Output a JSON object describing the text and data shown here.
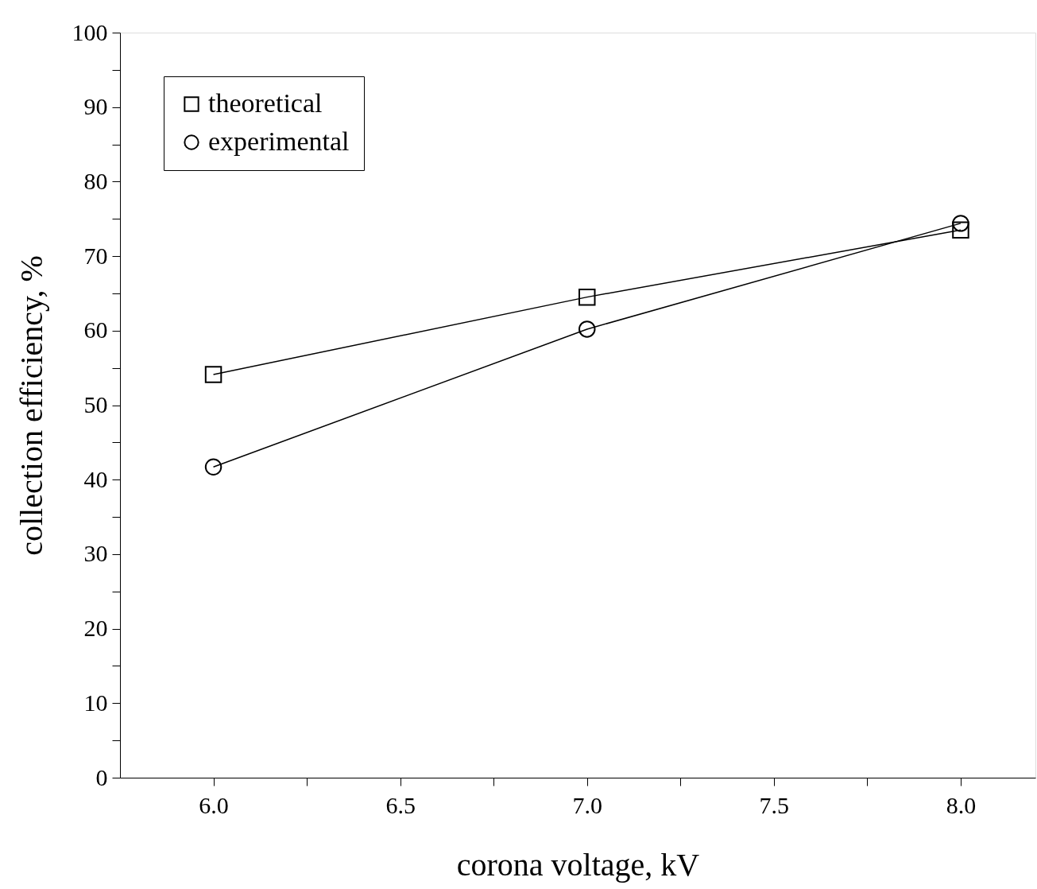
{
  "chart_data": {
    "type": "line",
    "xlabel": "corona voltage, kV",
    "ylabel": "collection efficiency, %",
    "x": [
      6.0,
      7.0,
      8.0
    ],
    "series": [
      {
        "name": "theoretical",
        "color": "#000000",
        "marker": "square",
        "values": [
          54.1,
          64.5,
          73.5
        ]
      },
      {
        "name": "experimental",
        "color": "#000000",
        "marker": "circle",
        "values": [
          41.7,
          60.2,
          74.4
        ]
      }
    ],
    "xlim": [
      5.75,
      8.2
    ],
    "ylim": [
      0,
      100
    ],
    "xticks": [
      {
        "value": 6,
        "label": "6.0"
      },
      {
        "value": 6.25,
        "label": null
      },
      {
        "value": 6.5,
        "label": "6.5"
      },
      {
        "value": 6.75,
        "label": null
      },
      {
        "value": 7,
        "label": "7.0"
      },
      {
        "value": 7.25,
        "label": null
      },
      {
        "value": 7.5,
        "label": "7.5"
      },
      {
        "value": 7.75,
        "label": null
      },
      {
        "value": 8,
        "label": "8.0"
      }
    ],
    "yticks": [
      0,
      {
        "value": 5,
        "label": null
      },
      10,
      {
        "value": 15,
        "label": null
      },
      20,
      {
        "value": 25,
        "label": null
      },
      30,
      {
        "value": 35,
        "label": null
      },
      40,
      {
        "value": 45,
        "label": null
      },
      50,
      {
        "value": 55,
        "label": null
      },
      60,
      {
        "value": 65,
        "label": null
      },
      70,
      {
        "value": 75,
        "label": null
      },
      80,
      {
        "value": 85,
        "label": null
      },
      90,
      {
        "value": 95,
        "label": null
      },
      100
    ],
    "legend": "top left",
    "grid": false,
    "line_style": "solid"
  }
}
